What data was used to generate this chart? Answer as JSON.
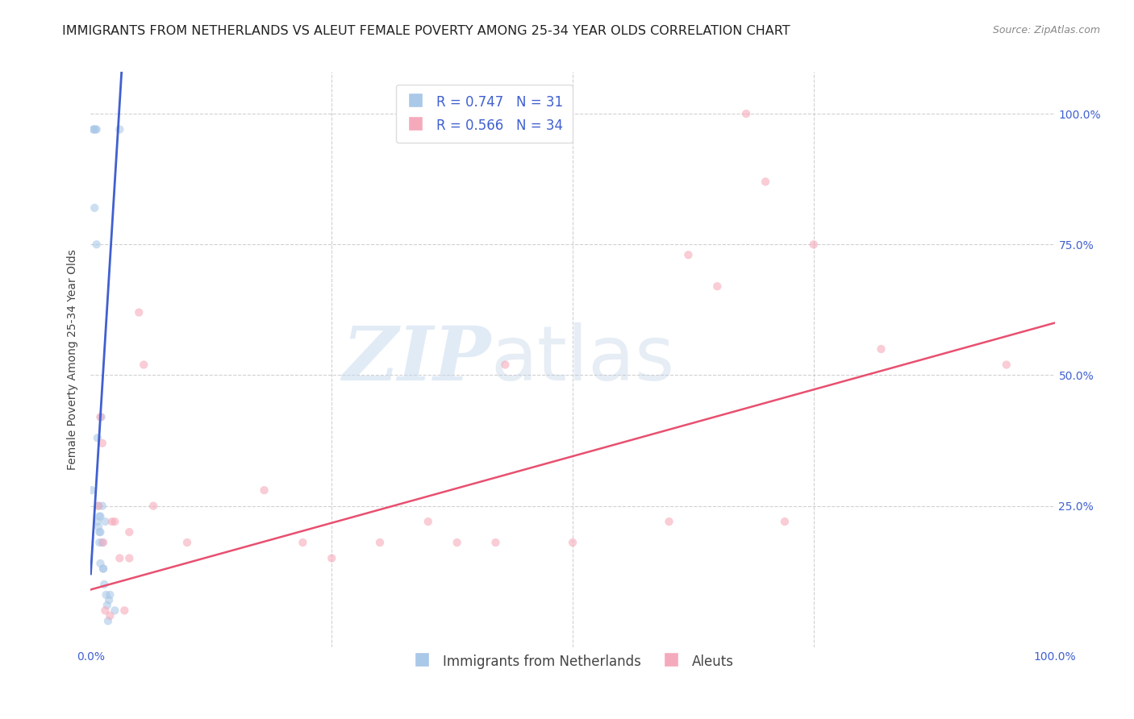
{
  "title": "IMMIGRANTS FROM NETHERLANDS VS ALEUT FEMALE POVERTY AMONG 25-34 YEAR OLDS CORRELATION CHART",
  "source": "Source: ZipAtlas.com",
  "ylabel": "Female Poverty Among 25-34 Year Olds",
  "xlim": [
    0,
    1.0
  ],
  "ylim": [
    -0.02,
    1.08
  ],
  "xticks": [
    0.0,
    0.25,
    0.5,
    0.75,
    1.0
  ],
  "xticklabels": [
    "0.0%",
    "",
    "",
    "",
    "100.0%"
  ],
  "yticks": [
    0.25,
    0.5,
    0.75,
    1.0
  ],
  "yticklabels": [
    "25.0%",
    "50.0%",
    "75.0%",
    "100.0%"
  ],
  "blue_R": 0.747,
  "blue_N": 31,
  "pink_R": 0.566,
  "pink_N": 34,
  "blue_color": "#aac8e8",
  "pink_color": "#f5aabb",
  "blue_line_color": "#4060d0",
  "pink_line_color": "#e85070",
  "tick_color": "#4060d0",
  "blue_scatter_x": [
    0.001,
    0.003,
    0.003,
    0.004,
    0.005,
    0.006,
    0.006,
    0.007,
    0.007,
    0.008,
    0.008,
    0.009,
    0.009,
    0.009,
    0.01,
    0.01,
    0.01,
    0.011,
    0.012,
    0.012,
    0.013,
    0.013,
    0.014,
    0.015,
    0.016,
    0.017,
    0.018,
    0.019,
    0.02,
    0.025,
    0.03
  ],
  "blue_scatter_y": [
    0.28,
    0.97,
    0.97,
    0.82,
    0.97,
    0.97,
    0.75,
    0.22,
    0.38,
    0.25,
    0.21,
    0.23,
    0.2,
    0.18,
    0.23,
    0.2,
    0.14,
    0.42,
    0.25,
    0.18,
    0.13,
    0.13,
    0.1,
    0.22,
    0.08,
    0.06,
    0.03,
    0.07,
    0.08,
    0.05,
    0.97
  ],
  "pink_scatter_x": [
    0.008,
    0.01,
    0.012,
    0.013,
    0.015,
    0.02,
    0.022,
    0.025,
    0.03,
    0.035,
    0.04,
    0.04,
    0.05,
    0.055,
    0.065,
    0.1,
    0.18,
    0.22,
    0.25,
    0.3,
    0.35,
    0.38,
    0.42,
    0.43,
    0.5,
    0.6,
    0.62,
    0.65,
    0.68,
    0.7,
    0.72,
    0.75,
    0.82,
    0.95
  ],
  "pink_scatter_y": [
    0.25,
    0.42,
    0.37,
    0.18,
    0.05,
    0.04,
    0.22,
    0.22,
    0.15,
    0.05,
    0.2,
    0.15,
    0.62,
    0.52,
    0.25,
    0.18,
    0.28,
    0.18,
    0.15,
    0.18,
    0.22,
    0.18,
    0.18,
    0.52,
    0.18,
    0.22,
    0.73,
    0.67,
    1.0,
    0.87,
    0.22,
    0.75,
    0.55,
    0.52
  ],
  "blue_trendline_x": [
    0.0,
    0.032
  ],
  "blue_trendline_y": [
    0.12,
    1.08
  ],
  "pink_trendline_x": [
    0.0,
    1.0
  ],
  "pink_trendline_y": [
    0.09,
    0.6
  ],
  "watermark_zip": "ZIP",
  "watermark_atlas": "atlas",
  "legend_label_blue": "Immigrants from Netherlands",
  "legend_label_pink": "Aleuts",
  "background_color": "#ffffff",
  "grid_color": "#cccccc",
  "title_fontsize": 11.5,
  "source_fontsize": 9,
  "axis_label_fontsize": 10,
  "tick_fontsize": 10,
  "legend_fontsize": 12,
  "scatter_size": 55,
  "scatter_alpha": 0.6,
  "trendline_lw_blue": 2.0,
  "trendline_lw_pink": 1.8
}
